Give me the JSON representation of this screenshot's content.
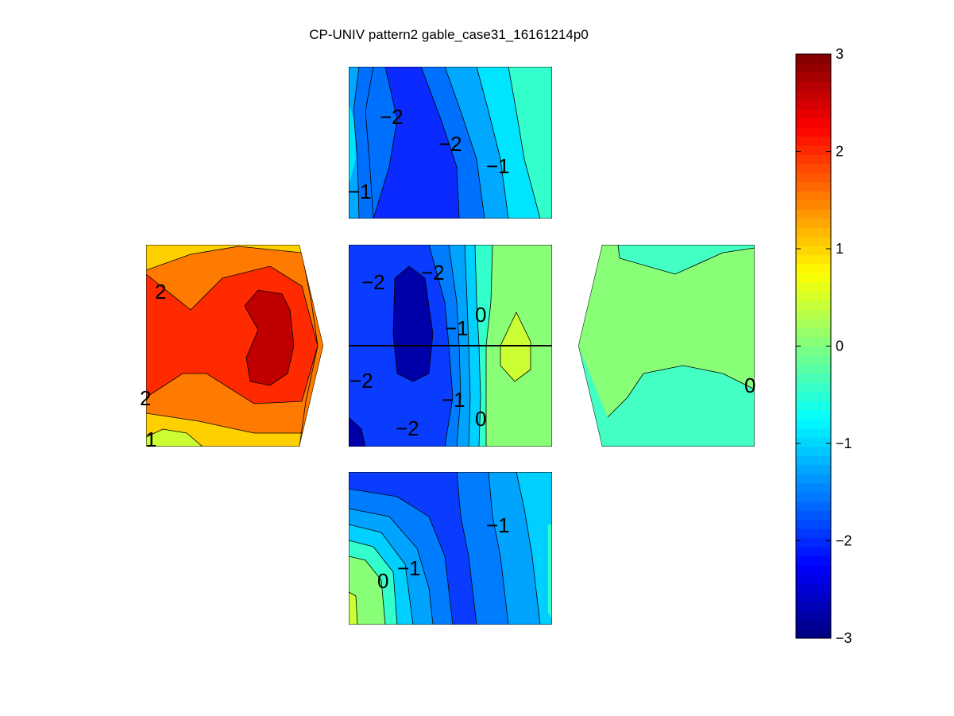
{
  "chart_data": {
    "type": "contour",
    "title": "CP-UNIV pattern2 gable_case31_16161214p0",
    "colormap": "jet",
    "colorbar": {
      "min": -3,
      "max": 3,
      "ticks": [
        "3",
        "2",
        "1",
        "0",
        "−1",
        "−2",
        "−3"
      ],
      "placement": "right"
    },
    "panels": [
      {
        "name": "top",
        "bands": [
          {
            "level": -0.75,
            "color": "#33ffcc"
          },
          {
            "level": -1.0,
            "color": "#00e5ff"
          },
          {
            "level": -1.4,
            "color": "#00a8ff"
          },
          {
            "level": -1.8,
            "color": "#0070ff"
          },
          {
            "level": -2.2,
            "color": "#0a2aff"
          },
          {
            "level": -1.8,
            "color": "#0070ff"
          },
          {
            "level": -1.4,
            "color": "#00a8ff"
          },
          {
            "level": -1.0,
            "color": "#00e5ff"
          }
        ],
        "labels": [
          "−2",
          "−2",
          "−1",
          "−1"
        ]
      },
      {
        "name": "center",
        "bands": [
          {
            "level": -2.0,
            "color": "#0a3cff"
          },
          {
            "level": -2.6,
            "color": "#0000a8"
          },
          {
            "level": -1.6,
            "color": "#007cff"
          },
          {
            "level": -1.3,
            "color": "#00a4ff"
          },
          {
            "level": -1.0,
            "color": "#00d0ff"
          },
          {
            "level": -0.6,
            "color": "#33ffcc"
          },
          {
            "level": 0.0,
            "color": "#88ff77"
          },
          {
            "level": 0.8,
            "color": "#ccff33"
          }
        ],
        "labels": [
          "−2",
          "−2",
          "0",
          "−1",
          "−2",
          "−1",
          "0",
          "−2"
        ]
      },
      {
        "name": "left",
        "bands": [
          {
            "level": 1.2,
            "color": "#ffd000"
          },
          {
            "level": 1.6,
            "color": "#ff7a00"
          },
          {
            "level": 2.0,
            "color": "#ff2a00"
          },
          {
            "level": 2.5,
            "color": "#c00000"
          },
          {
            "level": 0.7,
            "color": "#ccff33"
          }
        ],
        "labels": [
          "2",
          "2",
          "1"
        ]
      },
      {
        "name": "right",
        "bands": [
          {
            "level": -0.5,
            "color": "#44ffc4"
          },
          {
            "level": 0.0,
            "color": "#88ff77"
          }
        ],
        "labels": [
          "0"
        ]
      },
      {
        "name": "bottom",
        "bands": [
          {
            "level": -2.0,
            "color": "#0a3cff"
          },
          {
            "level": -1.6,
            "color": "#007cff"
          },
          {
            "level": -1.3,
            "color": "#00a4ff"
          },
          {
            "level": -1.0,
            "color": "#00d0ff"
          },
          {
            "level": -0.6,
            "color": "#33ffcc"
          },
          {
            "level": 0.0,
            "color": "#88ff77"
          },
          {
            "level": 0.7,
            "color": "#ccff33"
          }
        ],
        "labels": [
          "−1",
          "−1",
          "0"
        ]
      }
    ]
  }
}
